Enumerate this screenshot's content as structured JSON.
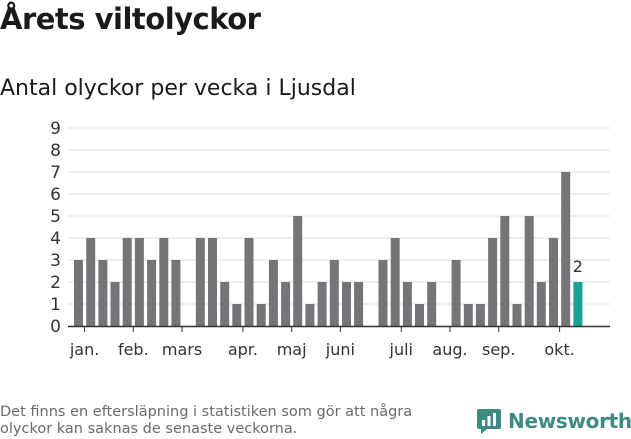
{
  "header": {
    "title": "Årets viltolyckor",
    "subtitle": "Antal olyckor per vecka i Ljusdal"
  },
  "footer": {
    "note": "Det finns en eftersläpning i statistiken som gör att några olyckor kan saknas de senaste veckorna.",
    "brand": "Newsworthy"
  },
  "colors": {
    "bar": "#767479",
    "highlight": "#17a398",
    "grid": "#dddddd",
    "axis": "#333333",
    "brand": "#3d8b83"
  },
  "chart_data": {
    "type": "bar",
    "title": "Antal olyckor per vecka i Ljusdal",
    "xlabel": "",
    "ylabel": "",
    "ylim": [
      0,
      9
    ],
    "yticks": [
      "0",
      "1",
      "2",
      "3",
      "4",
      "5",
      "6",
      "7",
      "8",
      "9"
    ],
    "weeks": [
      1,
      2,
      3,
      4,
      5,
      6,
      7,
      8,
      9,
      10,
      11,
      12,
      13,
      14,
      15,
      16,
      17,
      18,
      19,
      20,
      21,
      22,
      23,
      24,
      25,
      26,
      27,
      28,
      29,
      30,
      31,
      32,
      33,
      34,
      35,
      36,
      37,
      38,
      39,
      40,
      41,
      42
    ],
    "values": [
      3,
      4,
      3,
      2,
      4,
      4,
      3,
      4,
      3,
      0,
      4,
      4,
      2,
      1,
      4,
      1,
      3,
      2,
      5,
      1,
      2,
      3,
      2,
      2,
      0,
      3,
      4,
      2,
      1,
      2,
      0,
      3,
      1,
      1,
      4,
      5,
      1,
      5,
      2,
      4,
      7,
      2
    ],
    "highlight_index": 41,
    "highlight_label": "2",
    "month_labels": [
      {
        "label": "jan.",
        "week": 1.5
      },
      {
        "label": "feb.",
        "week": 5.5
      },
      {
        "label": "mars",
        "week": 9.5
      },
      {
        "label": "apr.",
        "week": 14.5
      },
      {
        "label": "maj",
        "week": 18.5
      },
      {
        "label": "juni",
        "week": 22.5
      },
      {
        "label": "juli",
        "week": 27.5
      },
      {
        "label": "aug.",
        "week": 31.5
      },
      {
        "label": "sep.",
        "week": 35.5
      },
      {
        "label": "okt.",
        "week": 40.5
      }
    ]
  }
}
